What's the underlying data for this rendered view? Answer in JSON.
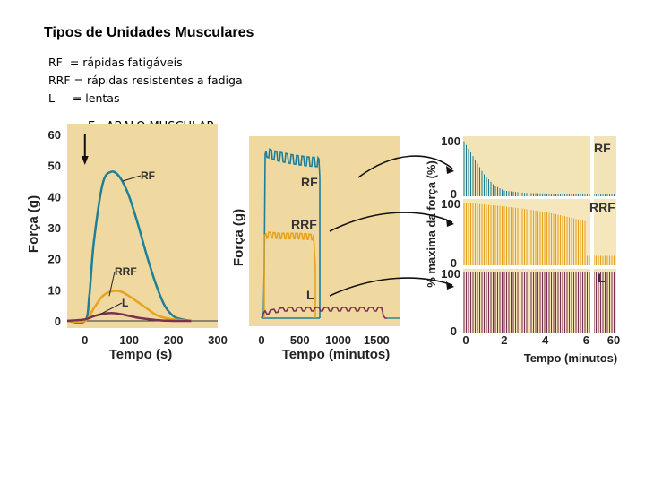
{
  "title": "Tipos de Unidades Musculares",
  "legend": [
    {
      "code": "RF  ",
      "text": "= rápidas fatigáveis"
    },
    {
      "code": "RRF ",
      "text": "= rápidas resistentes a fadiga"
    },
    {
      "code": "L     ",
      "text": "= lentas"
    }
  ],
  "section_label": "E   ABALO MUSCULAR",
  "colors": {
    "panel_bg": "#efd9a0",
    "panel_bg_light": "#f3e4b8",
    "rf": "#1f7f98",
    "rrf": "#e7a21e",
    "l": "#7a2f55"
  },
  "chart_data": [
    {
      "type": "line",
      "title": "",
      "xlabel": "Tempo (s)",
      "ylabel": "Força (g)",
      "xlim": [
        -40,
        300
      ],
      "ylim": [
        0,
        60
      ],
      "x_ticks": [
        "0",
        "100",
        "200",
        "300"
      ],
      "y_ticks": [
        "0",
        "10",
        "20",
        "30",
        "40",
        "50",
        "60"
      ],
      "series": [
        {
          "name": "RF",
          "x": [
            -40,
            0,
            10,
            20,
            40,
            60,
            80,
            100,
            120,
            140,
            160,
            180,
            200,
            220,
            240
          ],
          "y": [
            0,
            0,
            8,
            25,
            44,
            48,
            46,
            40,
            31,
            21,
            12,
            5,
            1.5,
            0.5,
            0
          ]
        },
        {
          "name": "RRF",
          "x": [
            -40,
            0,
            20,
            40,
            60,
            80,
            100,
            120,
            140,
            160,
            180,
            200,
            220,
            240
          ],
          "y": [
            0,
            0,
            4,
            8,
            9.5,
            9.5,
            8,
            6,
            4,
            2,
            1,
            0.5,
            0.2,
            0
          ]
        },
        {
          "name": "L",
          "x": [
            -40,
            0,
            20,
            40,
            60,
            80,
            100,
            120,
            140,
            160,
            180,
            200,
            240
          ],
          "y": [
            0,
            0.5,
            1.5,
            2.2,
            2.5,
            2.2,
            1.6,
            1,
            0.6,
            0.3,
            0.1,
            0,
            0
          ]
        }
      ],
      "annotations": [
        "RF",
        "RRF",
        "L"
      ]
    },
    {
      "type": "line",
      "title": "",
      "xlabel": "Tempo (minutos)",
      "ylabel": "Força (g)",
      "xlim": [
        0,
        1800
      ],
      "x_ticks": [
        "0",
        "500",
        "1000",
        "1500"
      ],
      "series": [
        {
          "name": "RF",
          "x": [
            0,
            20,
            40,
            80,
            150,
            300,
            450,
            580,
            600
          ],
          "y": [
            1,
            45,
            50,
            48,
            46,
            43,
            41,
            40,
            0
          ]
        },
        {
          "name": "RRF",
          "x": [
            0,
            20,
            60,
            200,
            400,
            580,
            600
          ],
          "y": [
            1,
            27,
            30,
            29,
            29,
            28,
            0
          ]
        },
        {
          "name": "L",
          "x": [
            0,
            40,
            300,
            700,
            1000,
            1300,
            1550,
            1600
          ],
          "y": [
            0,
            3,
            5,
            5,
            5,
            5,
            5,
            0
          ]
        }
      ],
      "annotations": [
        "RF",
        "RRF",
        "L"
      ]
    },
    {
      "type": "bar",
      "title": "",
      "xlabel": "Tempo (minutos)",
      "ylabel": "% maxima da força (%)",
      "x_ticks": [
        "0",
        "2",
        "4",
        "6",
        "60"
      ],
      "y_ticks": [
        "0",
        "100"
      ],
      "series": [
        {
          "name": "RF",
          "x": [
            0,
            0.5,
            1,
            1.5,
            2,
            3,
            4,
            5,
            6,
            60
          ],
          "y": [
            100,
            70,
            40,
            20,
            10,
            6,
            5,
            4,
            3,
            3
          ]
        },
        {
          "name": "RRF",
          "x": [
            0,
            1,
            2,
            3,
            4,
            5,
            6,
            60
          ],
          "y": [
            100,
            97,
            94,
            90,
            85,
            78,
            70,
            15
          ]
        },
        {
          "name": "L",
          "x": [
            0,
            2,
            4,
            6,
            60
          ],
          "y": [
            100,
            100,
            100,
            100,
            100
          ]
        }
      ],
      "annotations": [
        "RF",
        "RRF",
        "L"
      ]
    }
  ]
}
